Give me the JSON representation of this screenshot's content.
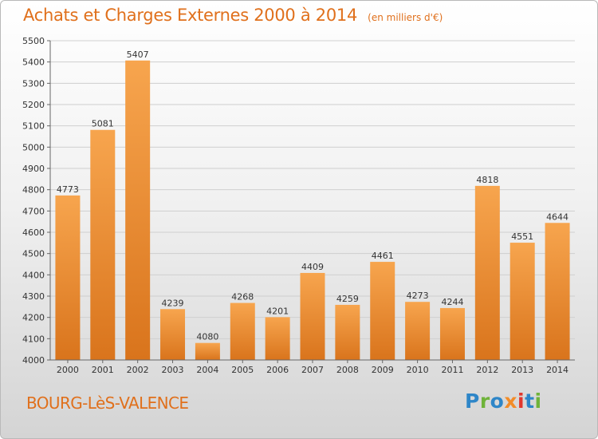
{
  "chart_data": {
    "type": "bar",
    "title": "Achats et Charges Externes 2000 à 2014",
    "subtitle": "(en milliers d'€)",
    "categories": [
      "2000",
      "2001",
      "2002",
      "2003",
      "2004",
      "2005",
      "2006",
      "2007",
      "2008",
      "2009",
      "2010",
      "2011",
      "2012",
      "2013",
      "2014"
    ],
    "values": [
      4773,
      5081,
      5407,
      4239,
      4080,
      4268,
      4201,
      4409,
      4259,
      4461,
      4273,
      4244,
      4818,
      4551,
      4644
    ],
    "ylim": [
      4000,
      5500
    ],
    "yticks": [
      "4000",
      "4100",
      "4200",
      "4300",
      "4400",
      "4500",
      "4600",
      "4700",
      "4800",
      "4900",
      "5000",
      "5100",
      "5200",
      "5300",
      "5400",
      "5500"
    ],
    "xlabel": "",
    "ylabel": "",
    "grid": true,
    "bar_color": "#f39a3c"
  },
  "footer": {
    "city": "BOURG-LèS-VALENCE",
    "logo": "Proxiti",
    "logo_letters": [
      {
        "ch": "P",
        "color": "#2e86c8"
      },
      {
        "ch": "r",
        "color": "#6fb33a"
      },
      {
        "ch": "o",
        "color": "#2e86c8"
      },
      {
        "ch": "x",
        "color": "#f28c28"
      },
      {
        "ch": "i",
        "color": "#e2372c"
      },
      {
        "ch": "t",
        "color": "#2e86c8"
      },
      {
        "ch": "i",
        "color": "#6fb33a"
      }
    ]
  }
}
